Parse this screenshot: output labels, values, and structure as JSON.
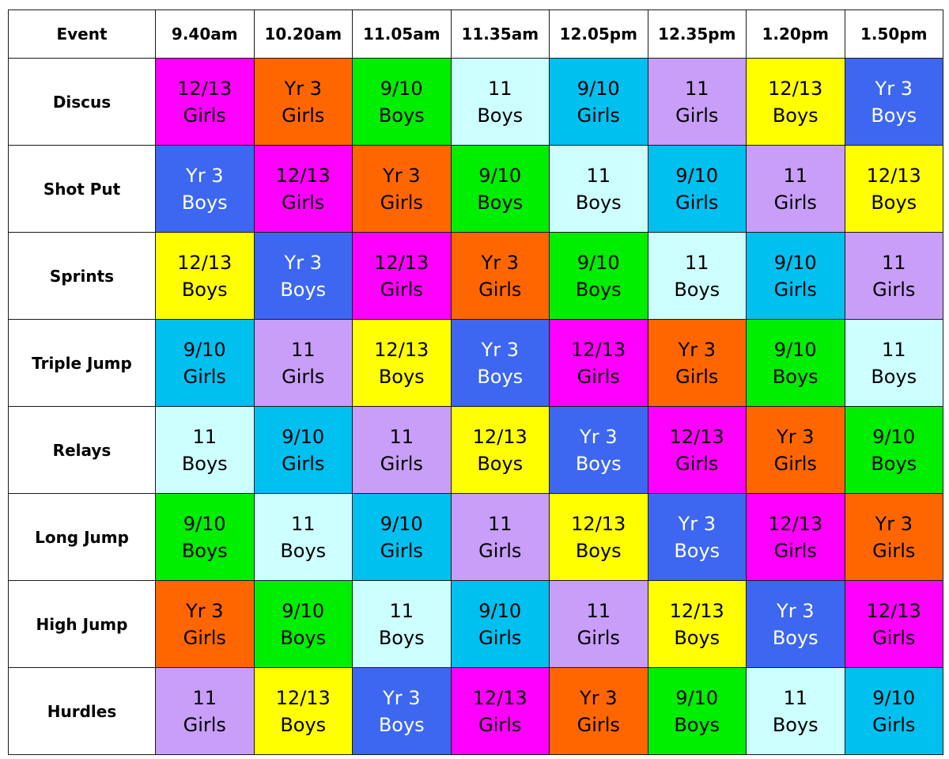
{
  "header": {
    "event_label": "Event",
    "times": [
      "9.40am",
      "10.20am",
      "11.05am",
      "11.35am",
      "12.05pm",
      "12.35pm",
      "1.20pm",
      "1.50pm"
    ]
  },
  "groups": {
    "y1213b": {
      "line1": "12/13",
      "line2": "Boys",
      "bg": "#ffff00",
      "fg": "#000000"
    },
    "y1213g": {
      "line1": "12/13",
      "line2": "Girls",
      "bg": "#ff00ff",
      "fg": "#000000"
    },
    "y3b": {
      "line1": "Yr 3",
      "line2": "Boys",
      "bg": "#3d67f0",
      "fg": "#ffffff"
    },
    "y3g": {
      "line1": "Yr 3",
      "line2": "Girls",
      "bg": "#ff6600",
      "fg": "#000000"
    },
    "y910b": {
      "line1": "9/10",
      "line2": "Boys",
      "bg": "#00ee00",
      "fg": "#000000"
    },
    "y910g": {
      "line1": "9/10",
      "line2": "Girls",
      "bg": "#00c0f0",
      "fg": "#000000"
    },
    "y11b": {
      "line1": "11",
      "line2": "Boys",
      "bg": "#ccffff",
      "fg": "#000000"
    },
    "y11g": {
      "line1": "11",
      "line2": "Girls",
      "bg": "#c89ef8",
      "fg": "#000000"
    }
  },
  "events": [
    {
      "name": "Discus",
      "slots": [
        "y1213g",
        "y3g",
        "y910b",
        "y11b",
        "y910g",
        "y11g",
        "y1213b",
        "y3b"
      ]
    },
    {
      "name": "Shot Put",
      "slots": [
        "y3b",
        "y1213g",
        "y3g",
        "y910b",
        "y11b",
        "y910g",
        "y11g",
        "y1213b"
      ]
    },
    {
      "name": "Sprints",
      "slots": [
        "y1213b",
        "y3b",
        "y1213g",
        "y3g",
        "y910b",
        "y11b",
        "y910g",
        "y11g"
      ]
    },
    {
      "name": "Triple Jump",
      "slots": [
        "y910g",
        "y11g",
        "y1213b",
        "y3b",
        "y1213g",
        "y3g",
        "y910b",
        "y11b"
      ]
    },
    {
      "name": "Relays",
      "slots": [
        "y11b",
        "y910g",
        "y11g",
        "y1213b",
        "y3b",
        "y1213g",
        "y3g",
        "y910b"
      ]
    },
    {
      "name": "Long Jump",
      "slots": [
        "y910b",
        "y11b",
        "y910g",
        "y11g",
        "y1213b",
        "y3b",
        "y1213g",
        "y3g"
      ]
    },
    {
      "name": "High Jump",
      "slots": [
        "y3g",
        "y910b",
        "y11b",
        "y910g",
        "y11g",
        "y1213b",
        "y3b",
        "y1213g"
      ]
    },
    {
      "name": "Hurdles",
      "slots": [
        "y11g",
        "y1213b",
        "y3b",
        "y1213g",
        "y3g",
        "y910b",
        "y11b",
        "y910g"
      ]
    }
  ]
}
